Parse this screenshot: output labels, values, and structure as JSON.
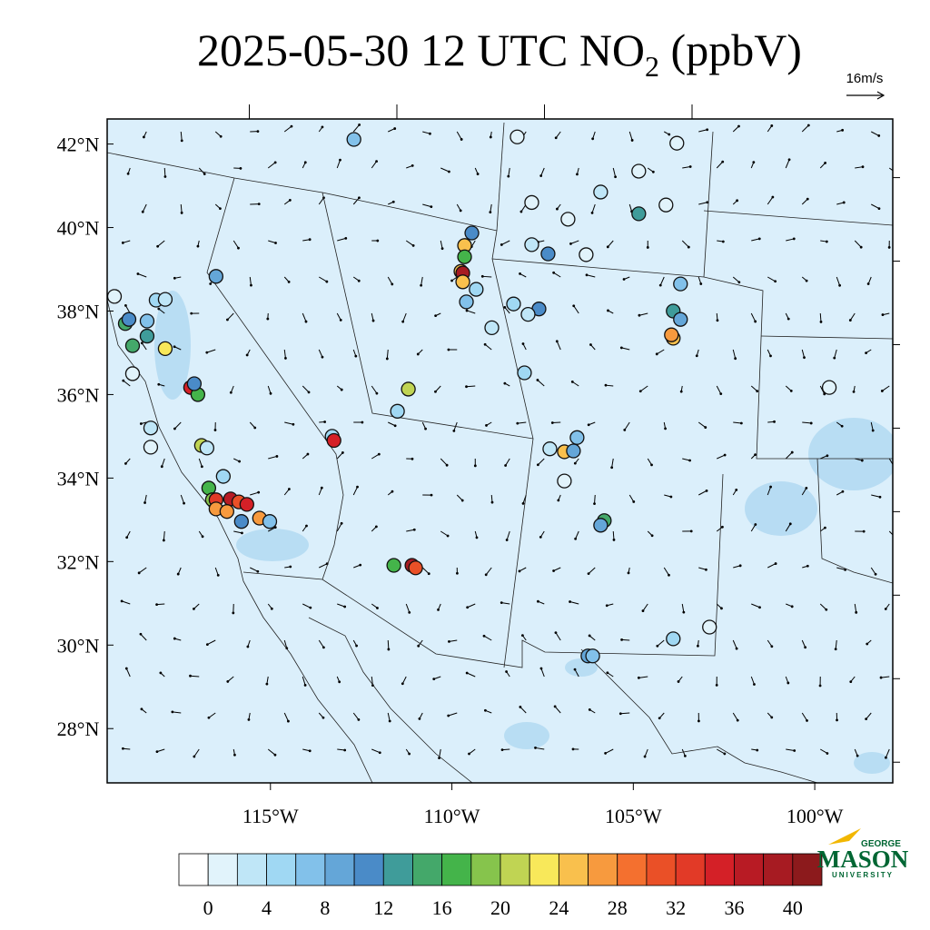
{
  "title": {
    "text": "2025-05-30 12 UTC NO",
    "subscript": "2",
    "unit": "(ppbV)"
  },
  "wind_reference": "16m/s",
  "map": {
    "xlim": [
      -119.5,
      -97.85
    ],
    "ylim": [
      26.7,
      42.6
    ],
    "lon_ticks": [
      {
        "value": -115,
        "label": "115°W"
      },
      {
        "value": -110,
        "label": "110°W"
      },
      {
        "value": -105,
        "label": "105°W"
      },
      {
        "value": -100,
        "label": "100°W"
      }
    ],
    "lat_ticks": [
      {
        "value": 42,
        "label": "42°N"
      },
      {
        "value": 40,
        "label": "40°N"
      },
      {
        "value": 38,
        "label": "38°N"
      },
      {
        "value": 36,
        "label": "36°N"
      },
      {
        "value": 34,
        "label": "34°N"
      },
      {
        "value": 32,
        "label": "32°N"
      },
      {
        "value": 30,
        "label": "30°N"
      },
      {
        "value": 28,
        "label": "28°N"
      }
    ],
    "stations": [
      [
        -112.7,
        42.11,
        6
      ],
      [
        -108.2,
        42.17,
        0
      ],
      [
        -103.8,
        42.02,
        0
      ],
      [
        -104.85,
        41.35,
        0
      ],
      [
        -105.9,
        40.85,
        2
      ],
      [
        -107.8,
        40.6,
        0
      ],
      [
        -104.1,
        40.54,
        0
      ],
      [
        -104.85,
        40.33,
        12
      ],
      [
        -106.8,
        40.2,
        0
      ],
      [
        -109.45,
        39.87,
        10
      ],
      [
        -109.65,
        39.57,
        24
      ],
      [
        -107.8,
        39.59,
        2
      ],
      [
        -107.35,
        39.37,
        10
      ],
      [
        -106.3,
        39.35,
        0
      ],
      [
        -109.65,
        39.3,
        16
      ],
      [
        -109.75,
        38.95,
        24
      ],
      [
        -109.7,
        38.91,
        38
      ],
      [
        -109.7,
        38.7,
        25
      ],
      [
        -109.33,
        38.52,
        5
      ],
      [
        -109.6,
        38.22,
        6
      ],
      [
        -103.7,
        38.65,
        7
      ],
      [
        -116.5,
        38.83,
        9
      ],
      [
        -108.3,
        38.17,
        4
      ],
      [
        -107.6,
        38.05,
        10
      ],
      [
        -107.9,
        37.92,
        3
      ],
      [
        -103.9,
        38.0,
        12
      ],
      [
        -103.7,
        37.8,
        8
      ],
      [
        -103.9,
        37.35,
        24
      ],
      [
        -103.95,
        37.43,
        26
      ],
      [
        -108.9,
        37.6,
        2
      ],
      [
        -108.0,
        36.52,
        5
      ],
      [
        -119.3,
        38.35,
        0
      ],
      [
        -118.15,
        38.26,
        4
      ],
      [
        -117.9,
        38.28,
        2
      ],
      [
        -119.0,
        37.7,
        14
      ],
      [
        -118.9,
        37.8,
        10
      ],
      [
        -118.4,
        37.76,
        6
      ],
      [
        -118.4,
        37.4,
        13
      ],
      [
        -118.8,
        37.17,
        15
      ],
      [
        -117.9,
        37.1,
        23
      ],
      [
        -118.8,
        36.5,
        0
      ],
      [
        -117.2,
        36.17,
        34
      ],
      [
        -117.0,
        36.0,
        17
      ],
      [
        -117.1,
        36.26,
        10
      ],
      [
        -118.3,
        35.2,
        2
      ],
      [
        -118.3,
        34.74,
        0
      ],
      [
        -116.9,
        34.78,
        21
      ],
      [
        -116.75,
        34.72,
        2
      ],
      [
        -111.2,
        36.13,
        21
      ],
      [
        -111.5,
        35.6,
        4
      ],
      [
        -113.3,
        35.0,
        5
      ],
      [
        -113.25,
        34.9,
        34
      ],
      [
        -107.3,
        34.7,
        2
      ],
      [
        -106.55,
        34.97,
        6
      ],
      [
        -106.9,
        34.63,
        24
      ],
      [
        -106.65,
        34.65,
        8
      ],
      [
        -106.9,
        33.93,
        0
      ],
      [
        -116.3,
        34.04,
        5
      ],
      [
        -116.7,
        33.76,
        16
      ],
      [
        -116.6,
        33.48,
        18
      ],
      [
        -116.5,
        33.48,
        32
      ],
      [
        -116.1,
        33.5,
        36
      ],
      [
        -115.87,
        33.43,
        31
      ],
      [
        -115.65,
        33.37,
        35
      ],
      [
        -116.5,
        33.26,
        26
      ],
      [
        -116.2,
        33.2,
        27
      ],
      [
        -115.8,
        32.96,
        10
      ],
      [
        -115.3,
        33.04,
        26
      ],
      [
        -115.02,
        32.96,
        6
      ],
      [
        -105.8,
        32.98,
        15
      ],
      [
        -105.9,
        32.87,
        8
      ],
      [
        -111.6,
        31.91,
        17
      ],
      [
        -111.1,
        31.91,
        38
      ],
      [
        -111.0,
        31.85,
        30
      ],
      [
        -103.9,
        30.15,
        4
      ],
      [
        -102.9,
        30.43,
        0
      ],
      [
        -106.25,
        29.74,
        8
      ],
      [
        -106.12,
        29.74,
        6
      ],
      [
        -99.6,
        36.17,
        0
      ]
    ]
  },
  "colorbar": {
    "levels": [
      0,
      2,
      4,
      6,
      8,
      10,
      12,
      14,
      16,
      18,
      20,
      22,
      24,
      26,
      28,
      30,
      32,
      34,
      36,
      38,
      40
    ],
    "labels": [
      0,
      4,
      8,
      12,
      16,
      20,
      24,
      28,
      32,
      36,
      40
    ],
    "colors": [
      "#ffffff",
      "#e1f3fb",
      "#bfe6f7",
      "#a0d8f3",
      "#82c1ea",
      "#64a6d8",
      "#4a8bc8",
      "#3f9c9a",
      "#44a86a",
      "#44b44a",
      "#86c44c",
      "#c0d453",
      "#f8e85a",
      "#f9c04d",
      "#f79a3e",
      "#f4702f",
      "#ea5027",
      "#e23a27",
      "#d42027",
      "#b81b24",
      "#a71b22",
      "#8c1a1c"
    ]
  },
  "logo": {
    "top": "GEORGE",
    "name": "MASON",
    "bottom": "UNIVERSITY"
  }
}
